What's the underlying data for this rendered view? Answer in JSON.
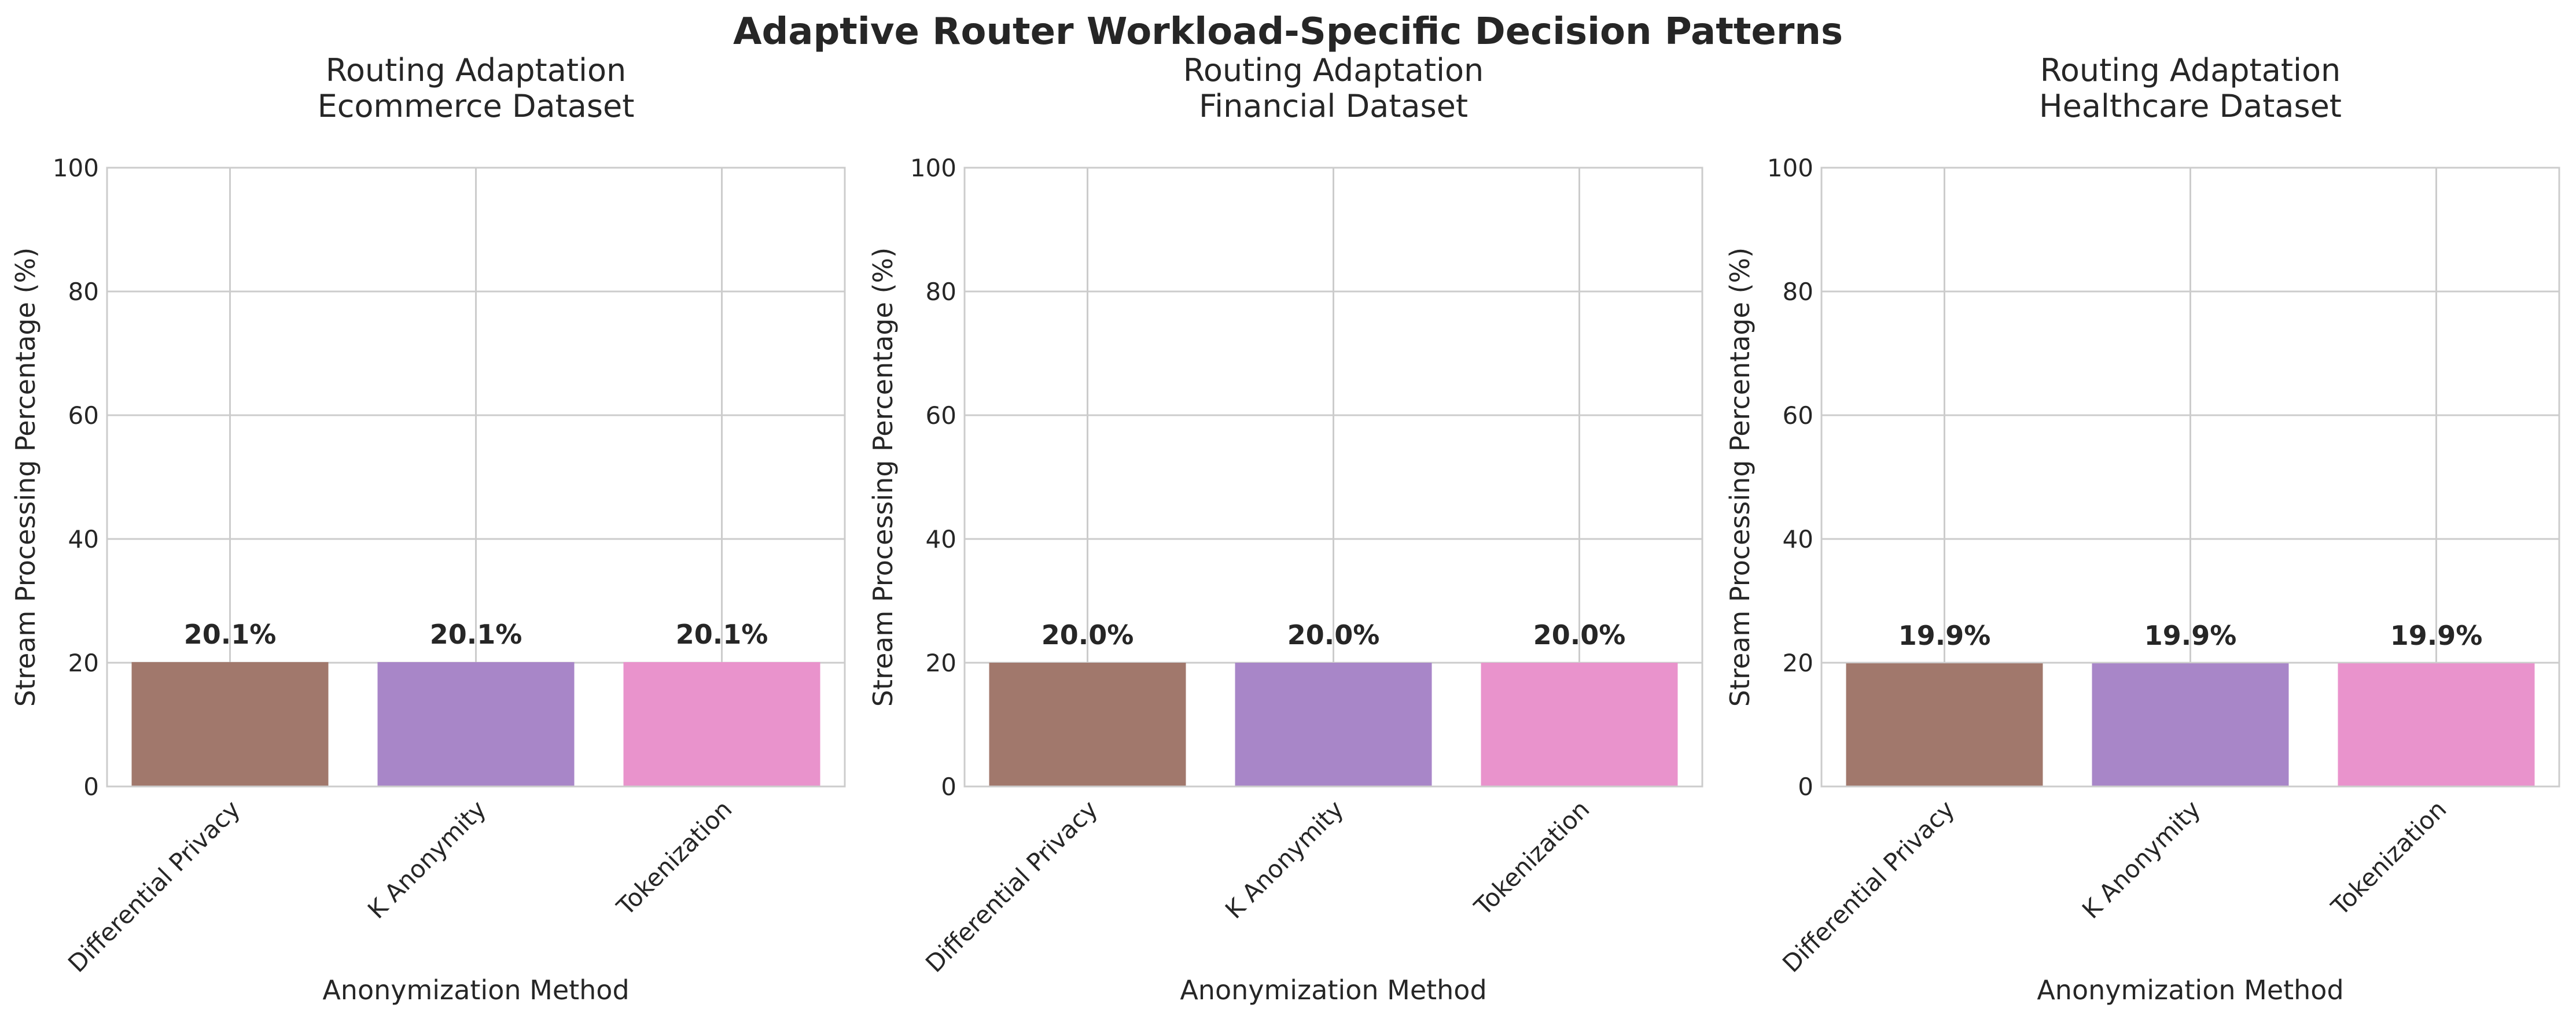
{
  "figure": {
    "title": "Adaptive Router Workload-Specific Decision Patterns"
  },
  "chart_data": [
    {
      "type": "bar",
      "title": "Routing Adaptation\nEcommerce Dataset",
      "xlabel": "Anonymization Method",
      "ylabel": "Stream Processing Percentage (%)",
      "ylim": [
        0,
        100
      ],
      "yticks": [
        0,
        20,
        40,
        60,
        80,
        100
      ],
      "grid": true,
      "categories": [
        "Differential Privacy",
        "K Anonymity",
        "Tokenization"
      ],
      "values": [
        20.1,
        20.1,
        20.1
      ],
      "data_labels": [
        "20.1%",
        "20.1%",
        "20.1%"
      ],
      "colors": [
        "#a1786c",
        "#a886c8",
        "#e993cc"
      ]
    },
    {
      "type": "bar",
      "title": "Routing Adaptation\nFinancial Dataset",
      "xlabel": "Anonymization Method",
      "ylabel": "Stream Processing Percentage (%)",
      "ylim": [
        0,
        100
      ],
      "yticks": [
        0,
        20,
        40,
        60,
        80,
        100
      ],
      "grid": true,
      "categories": [
        "Differential Privacy",
        "K Anonymity",
        "Tokenization"
      ],
      "values": [
        20.0,
        20.0,
        20.0
      ],
      "data_labels": [
        "20.0%",
        "20.0%",
        "20.0%"
      ],
      "colors": [
        "#a1786c",
        "#a886c8",
        "#e993cc"
      ]
    },
    {
      "type": "bar",
      "title": "Routing Adaptation\nHealthcare Dataset",
      "xlabel": "Anonymization Method",
      "ylabel": "Stream Processing Percentage (%)",
      "ylim": [
        0,
        100
      ],
      "yticks": [
        0,
        20,
        40,
        60,
        80,
        100
      ],
      "grid": true,
      "categories": [
        "Differential Privacy",
        "K Anonymity",
        "Tokenization"
      ],
      "values": [
        19.9,
        19.9,
        19.9
      ],
      "data_labels": [
        "19.9%",
        "19.9%",
        "19.9%"
      ],
      "colors": [
        "#a1786c",
        "#a886c8",
        "#e993cc"
      ]
    }
  ]
}
